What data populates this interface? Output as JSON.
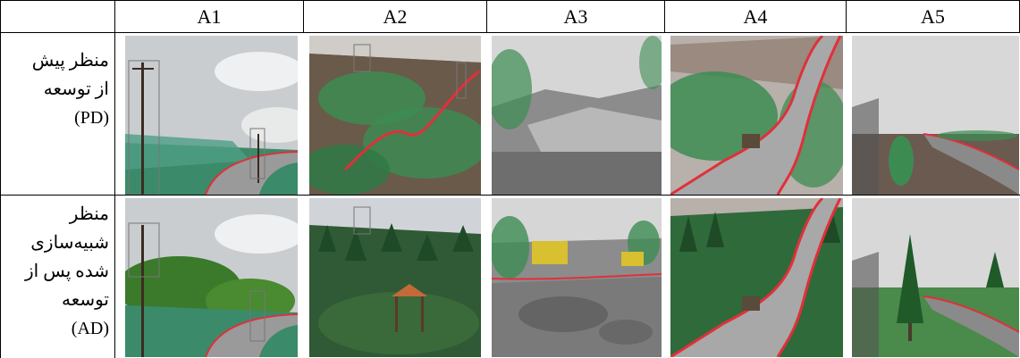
{
  "table": {
    "columns": [
      "A1",
      "A2",
      "A3",
      "A4",
      "A5"
    ],
    "rows": [
      {
        "label_lines": [
          "منظر پیش",
          "از توسعه",
          "(PD)"
        ]
      },
      {
        "label_lines": [
          "منظر",
          "شبیه‌سازی",
          "شده پس از",
          "توسعه",
          "(AD)"
        ]
      }
    ]
  },
  "colors": {
    "road_edge": "#e0303a",
    "vegetation": "#3c8c52",
    "sky": "#dcdcdc"
  }
}
